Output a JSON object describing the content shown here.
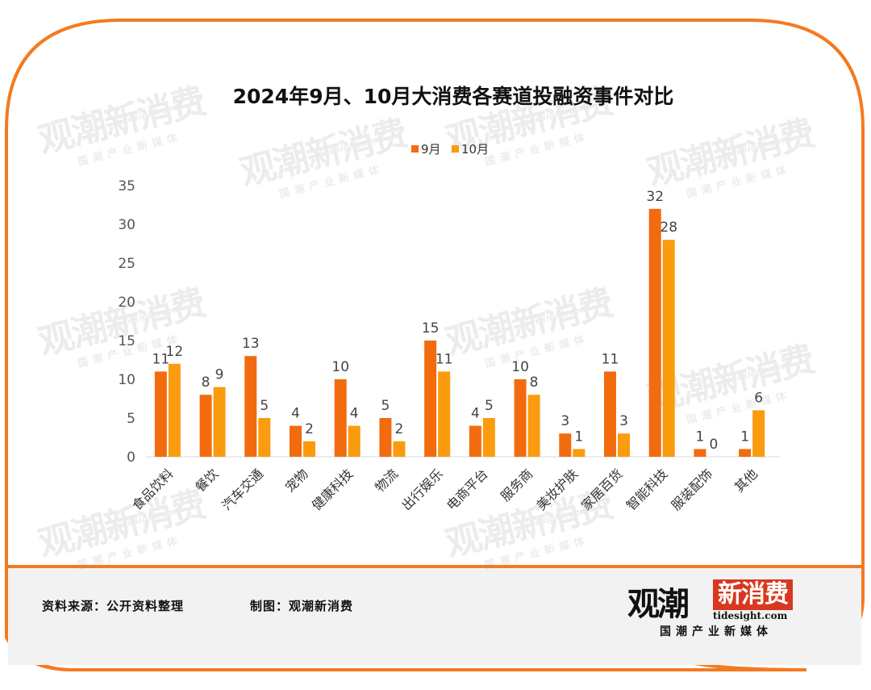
{
  "chart_data": {
    "type": "bar",
    "title": "2024年9月、10月大消费各赛道投融资事件对比",
    "categories": [
      "食品饮料",
      "餐饮",
      "汽车交通",
      "宠物",
      "健康科技",
      "物流",
      "出行娱乐",
      "电商平台",
      "服务商",
      "美妆护肤",
      "家居百货",
      "智能科技",
      "服装配饰",
      "其他"
    ],
    "series": [
      {
        "name": "9月",
        "values": [
          11,
          8,
          13,
          4,
          10,
          5,
          15,
          4,
          10,
          3,
          11,
          32,
          1,
          1
        ],
        "color": "#f26b0f"
      },
      {
        "name": "10月",
        "values": [
          12,
          9,
          5,
          2,
          4,
          2,
          11,
          5,
          8,
          1,
          3,
          28,
          0,
          6
        ],
        "color": "#fb9b0e"
      }
    ],
    "ylim": [
      0,
      35
    ],
    "yticks": [
      0,
      5,
      10,
      15,
      20,
      25,
      30,
      35
    ],
    "legend_position": "top-center",
    "grid": false
  },
  "footer": {
    "source": "资料来源：公开资料整理",
    "maker": "制图：观潮新消费"
  },
  "logo": {
    "main": "观潮",
    "brand": "新消费",
    "url": "tidesight.com",
    "tagline": "国潮产业新媒体"
  },
  "watermark": {
    "main": "观潮新消费",
    "url": "tidesight.com",
    "tagline": "国潮产业新媒体"
  },
  "colors": {
    "frame": "#f47a20",
    "bar_sep": "#f47a20"
  }
}
